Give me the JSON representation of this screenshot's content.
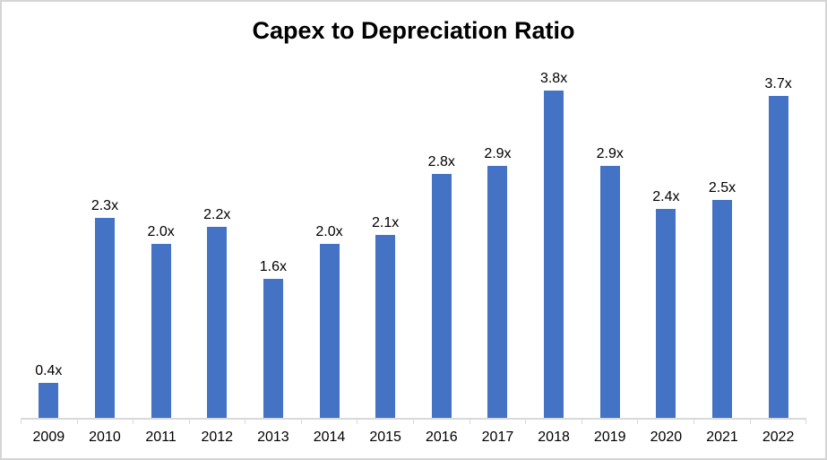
{
  "title": "Capex to Depreciation Ratio",
  "chart_data": {
    "type": "bar",
    "title": "Capex to Depreciation Ratio",
    "categories": [
      "2009",
      "2010",
      "2011",
      "2012",
      "2013",
      "2014",
      "2015",
      "2016",
      "2017",
      "2018",
      "2019",
      "2020",
      "2021",
      "2022"
    ],
    "values": [
      0.4,
      2.3,
      2.0,
      2.2,
      1.6,
      2.0,
      2.1,
      2.8,
      2.9,
      3.8,
      2.9,
      2.4,
      2.5,
      3.7
    ],
    "data_labels": [
      "0.4x",
      "2.3x",
      "2.0x",
      "2.2x",
      "1.6x",
      "2.0x",
      "2.1x",
      "2.8x",
      "2.9x",
      "3.8x",
      "2.9x",
      "2.4x",
      "2.5x",
      "3.7x"
    ],
    "xlabel": "",
    "ylabel": "",
    "ylim": [
      0,
      4.0
    ],
    "grid": false,
    "legend_position": "none",
    "bar_color": "#4472C4",
    "axis_color": "#D9D9D9",
    "text_color": "#000000",
    "frame_color": "#D5D5D5"
  }
}
